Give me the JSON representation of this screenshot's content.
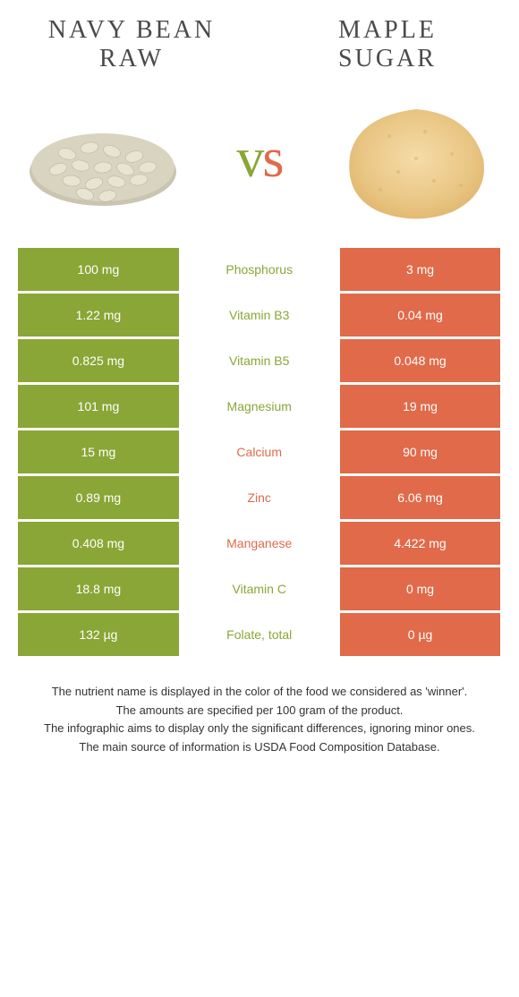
{
  "colors": {
    "left": "#8aa636",
    "right": "#e06a4a",
    "title": "#4a4a4a"
  },
  "header": {
    "left_line1": "Navy bean",
    "left_line2": "raw",
    "right_line1": "Maple",
    "right_line2": "sugar",
    "vs_v": "v",
    "vs_s": "s"
  },
  "rows": [
    {
      "left": "100 mg",
      "mid": "Phosphorus",
      "winner": "left",
      "right": "3 mg"
    },
    {
      "left": "1.22 mg",
      "mid": "Vitamin B3",
      "winner": "left",
      "right": "0.04 mg"
    },
    {
      "left": "0.825 mg",
      "mid": "Vitamin B5",
      "winner": "left",
      "right": "0.048 mg"
    },
    {
      "left": "101 mg",
      "mid": "Magnesium",
      "winner": "left",
      "right": "19 mg"
    },
    {
      "left": "15 mg",
      "mid": "Calcium",
      "winner": "right",
      "right": "90 mg"
    },
    {
      "left": "0.89 mg",
      "mid": "Zinc",
      "winner": "right",
      "right": "6.06 mg"
    },
    {
      "left": "0.408 mg",
      "mid": "Manganese",
      "winner": "right",
      "right": "4.422 mg"
    },
    {
      "left": "18.8 mg",
      "mid": "Vitamin C",
      "winner": "left",
      "right": "0 mg"
    },
    {
      "left": "132 µg",
      "mid": "Folate, total",
      "winner": "left",
      "right": "0 µg"
    }
  ],
  "footer": {
    "l1": "The nutrient name is displayed in the color of the food we considered as 'winner'.",
    "l2": "The amounts are specified per 100 gram of the product.",
    "l3": "The infographic aims to display only the significant differences, ignoring minor ones.",
    "l4": "The main source of information is USDA Food Composition Database."
  }
}
